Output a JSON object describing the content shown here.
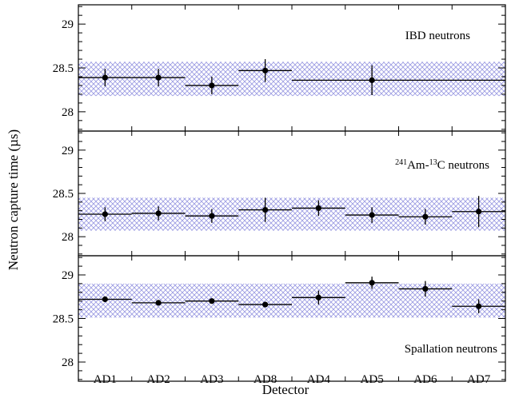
{
  "chart_data": {
    "type": "scatter",
    "xlabel": "Detector",
    "ylabel": "Neutron capture time (µs)",
    "categories": [
      "AD1",
      "AD2",
      "AD3",
      "AD8",
      "AD4",
      "AD5",
      "AD6",
      "AD7"
    ],
    "band_color": "#8888dd",
    "panels": [
      {
        "label": "IBD neutrons",
        "label_sup": [],
        "ylim": [
          27.78,
          29.22
        ],
        "yticks": [
          28,
          28.5,
          29
        ],
        "ytick_labels": [
          "28",
          "28.5",
          "29"
        ],
        "band": [
          28.18,
          28.57
        ],
        "points": [
          {
            "x_start": 0,
            "x_end": 1,
            "x": 0.5,
            "y": 28.39,
            "err": 0.1
          },
          {
            "x_start": 1,
            "x_end": 2,
            "x": 1.5,
            "y": 28.39,
            "err": 0.1
          },
          {
            "x_start": 2,
            "x_end": 3,
            "x": 2.5,
            "y": 28.3,
            "err": 0.1
          },
          {
            "x_start": 3,
            "x_end": 4,
            "x": 3.5,
            "y": 28.47,
            "err": 0.13
          },
          {
            "x_start": 4,
            "x_end": 8,
            "x": 5.5,
            "y": 28.36,
            "err": 0.17
          }
        ]
      },
      {
        "label": "Am-C neutrons",
        "label_parts": [
          "241",
          "Am-",
          "13",
          "C neutrons"
        ],
        "ylim": [
          27.78,
          29.22
        ],
        "yticks": [
          28,
          28.5,
          29
        ],
        "ytick_labels": [
          "28",
          "28.5",
          "29"
        ],
        "band": [
          28.07,
          28.45
        ],
        "points": [
          {
            "x_start": 0,
            "x_end": 1,
            "x": 0.5,
            "y": 28.26,
            "err": 0.08
          },
          {
            "x_start": 1,
            "x_end": 2,
            "x": 1.5,
            "y": 28.27,
            "err": 0.08
          },
          {
            "x_start": 2,
            "x_end": 3,
            "x": 2.5,
            "y": 28.24,
            "err": 0.08
          },
          {
            "x_start": 3,
            "x_end": 4,
            "x": 3.5,
            "y": 28.31,
            "err": 0.14
          },
          {
            "x_start": 4,
            "x_end": 5,
            "x": 4.5,
            "y": 28.33,
            "err": 0.09
          },
          {
            "x_start": 5,
            "x_end": 6,
            "x": 5.5,
            "y": 28.25,
            "err": 0.09
          },
          {
            "x_start": 6,
            "x_end": 7,
            "x": 6.5,
            "y": 28.23,
            "err": 0.09
          },
          {
            "x_start": 7,
            "x_end": 8,
            "x": 7.5,
            "y": 28.29,
            "err": 0.18
          }
        ]
      },
      {
        "label": "Spallation neutrons",
        "label_sup": [],
        "ylim": [
          27.78,
          29.22
        ],
        "yticks": [
          28,
          28.5,
          29
        ],
        "ytick_labels": [
          "28",
          "28.5",
          "29"
        ],
        "band": [
          28.51,
          28.9
        ],
        "points": [
          {
            "x_start": 0,
            "x_end": 1,
            "x": 0.5,
            "y": 28.72,
            "err": 0.03
          },
          {
            "x_start": 1,
            "x_end": 2,
            "x": 1.5,
            "y": 28.68,
            "err": 0.03
          },
          {
            "x_start": 2,
            "x_end": 3,
            "x": 2.5,
            "y": 28.7,
            "err": 0.03
          },
          {
            "x_start": 3,
            "x_end": 4,
            "x": 3.5,
            "y": 28.66,
            "err": 0.03
          },
          {
            "x_start": 4,
            "x_end": 5,
            "x": 4.5,
            "y": 28.74,
            "err": 0.08
          },
          {
            "x_start": 5,
            "x_end": 6,
            "x": 5.5,
            "y": 28.91,
            "err": 0.07
          },
          {
            "x_start": 6,
            "x_end": 7,
            "x": 6.5,
            "y": 28.84,
            "err": 0.09
          },
          {
            "x_start": 7,
            "x_end": 8,
            "x": 7.5,
            "y": 28.64,
            "err": 0.08
          }
        ]
      }
    ]
  }
}
